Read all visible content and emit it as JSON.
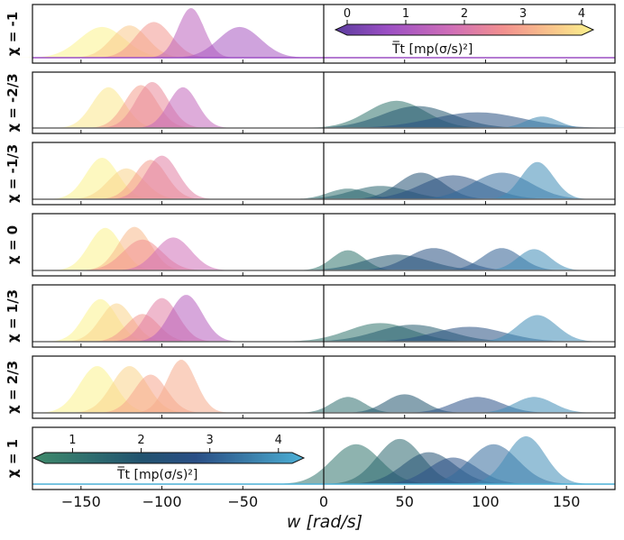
{
  "chart_data": {
    "type": "area",
    "title": "",
    "xlabel": "w [rad/s]",
    "xlim": [
      -180,
      180
    ],
    "x_ticks": [
      -150,
      -100,
      -50,
      0,
      50,
      100,
      150
    ],
    "x_tick_labels": [
      "−150",
      "−100",
      "−50",
      "0",
      "50",
      "100",
      "150"
    ],
    "panels": [
      {
        "label": "χ = -1",
        "series": [
          {
            "center": -137,
            "width": 14,
            "height": 0.62,
            "T": 4.0
          },
          {
            "center": -120,
            "width": 11,
            "height": 0.65,
            "T": 3.2
          },
          {
            "center": -105,
            "width": 11,
            "height": 0.72,
            "T": 2.5
          },
          {
            "center": -82,
            "width": 8,
            "height": 1.0,
            "T": 1.3
          },
          {
            "center": -52,
            "width": 13,
            "height": 0.62,
            "T": 1.0
          }
        ]
      },
      {
        "label": "χ = -2/3",
        "series": [
          {
            "center": -133,
            "width": 10,
            "height": 0.78,
            "T": 3.8
          },
          {
            "center": -113,
            "width": 10,
            "height": 0.82,
            "T": 2.6
          },
          {
            "center": -106,
            "width": 10,
            "height": 0.88,
            "T": 2.2
          },
          {
            "center": -87,
            "width": 9,
            "height": 0.78,
            "T": 1.4
          },
          {
            "center": 45,
            "width": 18,
            "height": 0.52,
            "T": 1.2
          },
          {
            "center": 58,
            "width": 22,
            "height": 0.42,
            "T": 2.0
          },
          {
            "center": 95,
            "width": 28,
            "height": 0.3,
            "T": 2.6
          },
          {
            "center": 135,
            "width": 10,
            "height": 0.22,
            "T": 3.6
          }
        ]
      },
      {
        "label": "χ = -1/3",
        "series": [
          {
            "center": -137,
            "width": 10,
            "height": 0.78,
            "T": 4.0
          },
          {
            "center": -122,
            "width": 11,
            "height": 0.58,
            "T": 3.4
          },
          {
            "center": -107,
            "width": 10,
            "height": 0.74,
            "T": 2.6
          },
          {
            "center": -100,
            "width": 10,
            "height": 0.82,
            "T": 2.0
          },
          {
            "center": 15,
            "width": 12,
            "height": 0.2,
            "T": 1.3
          },
          {
            "center": 35,
            "width": 18,
            "height": 0.25,
            "T": 1.6
          },
          {
            "center": 60,
            "width": 14,
            "height": 0.5,
            "T": 2.2
          },
          {
            "center": 80,
            "width": 20,
            "height": 0.45,
            "T": 2.6
          },
          {
            "center": 110,
            "width": 18,
            "height": 0.5,
            "T": 3.2
          },
          {
            "center": 132,
            "width": 10,
            "height": 0.7,
            "T": 3.7
          }
        ]
      },
      {
        "label": "χ = 0",
        "series": [
          {
            "center": -135,
            "width": 10,
            "height": 0.8,
            "T": 4.0
          },
          {
            "center": -117,
            "width": 10,
            "height": 0.82,
            "T": 3.0
          },
          {
            "center": -112,
            "width": 12,
            "height": 0.58,
            "T": 2.4
          },
          {
            "center": -93,
            "width": 11,
            "height": 0.62,
            "T": 1.6
          },
          {
            "center": 15,
            "width": 10,
            "height": 0.38,
            "T": 1.2
          },
          {
            "center": 45,
            "width": 20,
            "height": 0.3,
            "T": 2.0
          },
          {
            "center": 68,
            "width": 16,
            "height": 0.42,
            "T": 2.6
          },
          {
            "center": 110,
            "width": 12,
            "height": 0.42,
            "T": 3.0
          },
          {
            "center": 130,
            "width": 10,
            "height": 0.4,
            "T": 3.7
          }
        ]
      },
      {
        "label": "χ = 1/3",
        "series": [
          {
            "center": -138,
            "width": 10,
            "height": 0.8,
            "T": 4.0
          },
          {
            "center": -128,
            "width": 10,
            "height": 0.72,
            "T": 3.4
          },
          {
            "center": -112,
            "width": 10,
            "height": 0.52,
            "T": 2.5
          },
          {
            "center": -100,
            "width": 10,
            "height": 0.82,
            "T": 2.0
          },
          {
            "center": -85,
            "width": 10,
            "height": 0.88,
            "T": 1.2
          },
          {
            "center": 35,
            "width": 20,
            "height": 0.35,
            "T": 1.2
          },
          {
            "center": 55,
            "width": 22,
            "height": 0.32,
            "T": 1.8
          },
          {
            "center": 90,
            "width": 22,
            "height": 0.28,
            "T": 2.6
          },
          {
            "center": 132,
            "width": 12,
            "height": 0.5,
            "T": 3.7
          }
        ]
      },
      {
        "label": "χ = 2/3",
        "series": [
          {
            "center": -140,
            "width": 11,
            "height": 0.88,
            "T": 4.0
          },
          {
            "center": -120,
            "width": 11,
            "height": 0.88,
            "T": 3.4
          },
          {
            "center": -107,
            "width": 10,
            "height": 0.72,
            "T": 2.7
          },
          {
            "center": -88,
            "width": 9,
            "height": 1.0,
            "T": 2.8
          },
          {
            "center": 15,
            "width": 10,
            "height": 0.3,
            "T": 1.3
          },
          {
            "center": 50,
            "width": 12,
            "height": 0.35,
            "T": 2.0
          },
          {
            "center": 95,
            "width": 15,
            "height": 0.3,
            "T": 2.8
          },
          {
            "center": 130,
            "width": 12,
            "height": 0.3,
            "T": 3.7
          }
        ]
      },
      {
        "label": "χ = 1",
        "series": [
          {
            "center": 20,
            "width": 15,
            "height": 0.75,
            "T": 1.2
          },
          {
            "center": 47,
            "width": 14,
            "height": 0.85,
            "T": 1.5
          },
          {
            "center": 65,
            "width": 16,
            "height": 0.6,
            "T": 2.2
          },
          {
            "center": 80,
            "width": 15,
            "height": 0.5,
            "T": 2.8
          },
          {
            "center": 105,
            "width": 15,
            "height": 0.75,
            "T": 3.2
          },
          {
            "center": 125,
            "width": 12,
            "height": 0.9,
            "T": 3.7
          }
        ]
      }
    ],
    "colorbars": [
      {
        "name": "magma-plasma",
        "range": [
          0,
          4
        ],
        "ticks": [
          "0",
          "1",
          "2",
          "3",
          "4"
        ],
        "label": "T̅t [mp(σ/s)²]",
        "stops": [
          "#5b3c9e",
          "#9b4fc4",
          "#d06fb8",
          "#f2908f",
          "#f9c88b",
          "#fbf28c"
        ]
      },
      {
        "name": "crest",
        "range": [
          0.6,
          4.2
        ],
        "ticks": [
          "1",
          "2",
          "3",
          "4"
        ],
        "label": "T̅t [mp(σ/s)²]",
        "stops": [
          "#3f8a6a",
          "#2f6f6f",
          "#22536f",
          "#2a4f86",
          "#3b7eaa",
          "#4cb0d6"
        ]
      }
    ]
  }
}
